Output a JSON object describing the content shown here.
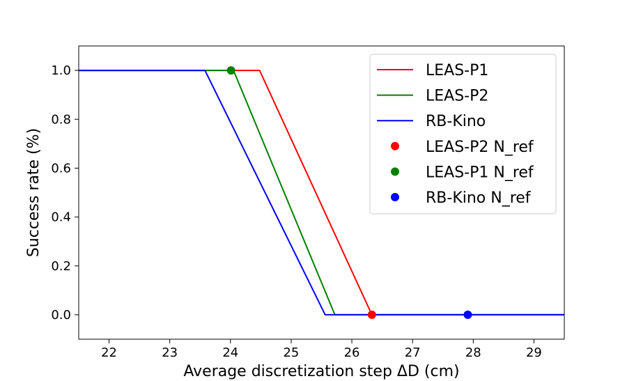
{
  "chart_data": {
    "type": "line",
    "title": "",
    "xlabel": "Average discretization step ΔD (cm)",
    "ylabel": "Success rate (%)",
    "xlim": [
      21.5,
      29.5
    ],
    "ylim": [
      -0.1,
      1.1
    ],
    "xticks": [
      22,
      23,
      24,
      25,
      26,
      27,
      28,
      29
    ],
    "yticks": [
      0.0,
      0.2,
      0.4,
      0.6,
      0.8,
      1.0
    ],
    "grid": false,
    "legend_position": "top-right",
    "series": [
      {
        "name": "LEAS-P1",
        "color": "#ff0000",
        "x": [
          21.5,
          24.48,
          26.33,
          29.5
        ],
        "y": [
          1.0,
          1.0,
          0.0,
          0.0
        ]
      },
      {
        "name": "LEAS-P2",
        "color": "#008000",
        "x": [
          21.5,
          24.05,
          25.72,
          29.5
        ],
        "y": [
          1.0,
          1.0,
          0.0,
          0.0
        ]
      },
      {
        "name": "RB-Kino",
        "color": "#0000ff",
        "x": [
          21.5,
          23.58,
          25.56,
          29.5
        ],
        "y": [
          1.0,
          1.0,
          0.0,
          0.0
        ]
      }
    ],
    "points": [
      {
        "name": "LEAS-P2 N_ref",
        "color": "#ff0000",
        "x": 26.33,
        "y": 0.0
      },
      {
        "name": "LEAS-P1 N_ref",
        "color": "#008000",
        "x": 24.01,
        "y": 1.0
      },
      {
        "name": "RB-Kino N_ref",
        "color": "#0000ff",
        "x": 27.91,
        "y": 0.0
      }
    ]
  }
}
